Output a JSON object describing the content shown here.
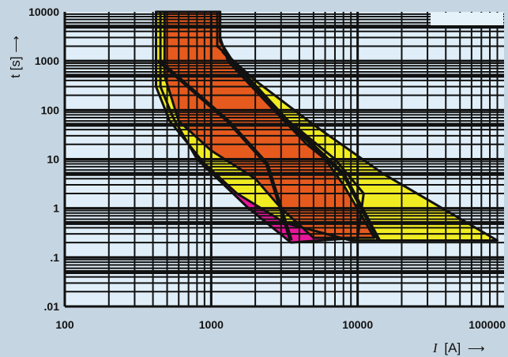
{
  "chart_data": {
    "type": "area",
    "title": "",
    "xlabel": "I [A]",
    "ylabel": "t [s]",
    "xscale": "log",
    "yscale": "log",
    "xlim": [
      100,
      100000
    ],
    "ylim": [
      0.01,
      10000
    ],
    "grid": true,
    "xticks": [
      "100",
      "1000",
      "10000",
      "100000"
    ],
    "yticks": [
      "10000",
      "1000",
      "100",
      "10",
      "1",
      ".1",
      ".01"
    ],
    "series": [
      {
        "color": "#e8179a",
        "points": [
          [
            450,
            10000
          ],
          [
            1150,
            10000
          ],
          [
            1150,
            2500
          ],
          [
            1400,
            1000
          ],
          [
            3000,
            80
          ],
          [
            7000,
            10
          ],
          [
            11000,
            2
          ],
          [
            10000,
            0.25
          ],
          [
            3500,
            0.2
          ],
          [
            1800,
            1
          ],
          [
            800,
            10
          ],
          [
            550,
            70
          ],
          [
            450,
            300
          ]
        ]
      },
      {
        "color": "#f0ec22",
        "points": [
          [
            420,
            10000
          ],
          [
            1100,
            10000
          ],
          [
            1100,
            2000
          ],
          [
            2000,
            400
          ],
          [
            5000,
            50
          ],
          [
            15000,
            5
          ],
          [
            30000,
            1.5
          ],
          [
            90000,
            0.22
          ],
          [
            9000,
            0.22
          ],
          [
            3200,
            0.5
          ],
          [
            1500,
            2
          ],
          [
            900,
            8
          ],
          [
            520,
            60
          ],
          [
            420,
            300
          ]
        ]
      },
      {
        "color": "#e65a1e",
        "points": [
          [
            480,
            10000
          ],
          [
            1150,
            10000
          ],
          [
            1150,
            3000
          ],
          [
            1300,
            1000
          ],
          [
            1800,
            350
          ],
          [
            3000,
            70
          ],
          [
            4500,
            20
          ],
          [
            6000,
            10
          ],
          [
            8000,
            3
          ],
          [
            11000,
            0.6
          ],
          [
            13000,
            0.25
          ],
          [
            5000,
            0.25
          ],
          [
            3000,
            1
          ],
          [
            2000,
            4
          ],
          [
            1000,
            15
          ],
          [
            600,
            60
          ],
          [
            480,
            500
          ]
        ]
      }
    ],
    "boundary_lines": [
      [
        [
          440,
          1000
        ],
        [
          1300,
          60
        ],
        [
          2400,
          8
        ],
        [
          3500,
          0.22
        ]
      ],
      [
        [
          1200,
          1600
        ],
        [
          3500,
          50
        ],
        [
          8000,
          5
        ],
        [
          14000,
          0.22
        ]
      ]
    ],
    "legend_box_color": "#e6f2fa"
  },
  "axis": {
    "y_title": "t [s]",
    "y_arrow": "⟶",
    "x_title_italic": "I",
    "x_title_unit": "[A]",
    "x_arrow": "⟶"
  }
}
